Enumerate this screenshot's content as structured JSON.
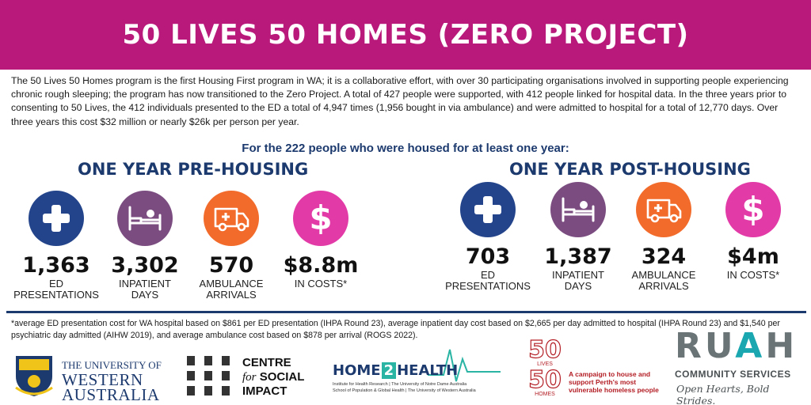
{
  "header": {
    "title": "50 LIVES 50 HOMES (ZERO PROJECT)"
  },
  "intro": {
    "text": "The 50 Lives 50 Homes program is the first Housing First program in WA; it is a collaborative effort, with over 30 participating organisations involved in supporting people experiencing chronic rough sleeping; the program has now transitioned to the Zero Project. A total of 427 people were supported, with 412 people linked for hospital data. In the three years prior to consenting to 50 Lives, the 412 individuals presented to the ED a total of 4,947 times (1,956 bought in via ambulance) and were admitted to hospital for a total of 12,770 days. Over three years this cost $32 million or nearly $26k per person per year."
  },
  "subheading": "For the 222 people who were housed for at least one year:",
  "pre_housing": {
    "title": "ONE YEAR PRE-HOUSING",
    "stats": [
      {
        "icon": "hospital-cross-icon",
        "value": "1,363",
        "label": "ED\nPRESENTATIONS"
      },
      {
        "icon": "hospital-bed-icon",
        "value": "3,302",
        "label": "INPATIENT\nDAYS"
      },
      {
        "icon": "ambulance-icon",
        "value": "570",
        "label": "AMBULANCE\nARRIVALS"
      },
      {
        "icon": "dollar-icon",
        "value": "$8.8m",
        "label": "IN COSTS*"
      }
    ]
  },
  "post_housing": {
    "title": "ONE YEAR POST-HOUSING",
    "stats": [
      {
        "icon": "hospital-cross-icon",
        "value": "703",
        "label": "ED\nPRESENTATIONS"
      },
      {
        "icon": "hospital-bed-icon",
        "value": "1,387",
        "label": "INPATIENT\nDAYS"
      },
      {
        "icon": "ambulance-icon",
        "value": "324",
        "label": "AMBULANCE\nARRIVALS"
      },
      {
        "icon": "dollar-icon",
        "value": "$4m",
        "label": "IN COSTS*"
      }
    ]
  },
  "footnote": "*average ED presentation cost for WA hospital based on $861 per ED presentation (IHPA Round 23), average inpatient day cost based on $2,665 per day admitted to hospital (IHPA Round 23) and $1,540 per psychiatric day admitted (AIHW 2019), and average ambulance cost based on $878 per arrival (ROGS 2022).",
  "logos": {
    "uwa": {
      "line1": "THE UNIVERSITY OF",
      "line2": "WESTERN",
      "line3": "AUSTRALIA"
    },
    "csi": {
      "line1": "CENTRE",
      "for": "for",
      "line2": "SOCIAL",
      "line3": "IMPACT"
    },
    "home2health": {
      "part1": "HOME",
      "part2": "2",
      "part3": "HEALTH",
      "sub1": "Institute for Health Research | The University of Notre Dame Australia",
      "sub2": "School of Population & Global Health | The University of Western Australia"
    },
    "fifty": {
      "top": "50",
      "middle": "LIVES",
      "bottom": "50",
      "homes": "HOMES",
      "tagline": "A campaign to house and support Perth's most vulnerable homeless people"
    },
    "ruah": {
      "name_r": "RU",
      "name_a": "A",
      "name_h": "H",
      "subtitle": "COMMUNITY SERVICES",
      "tagline": "Open Hearts, Bold Strides."
    }
  },
  "colors": {
    "banner": "#b8197a",
    "navy": "#1d3a6e",
    "ed": "#23448b",
    "inpatient": "#7a4c80",
    "ambulance": "#f26b2a",
    "cost": "#e23aa6"
  }
}
